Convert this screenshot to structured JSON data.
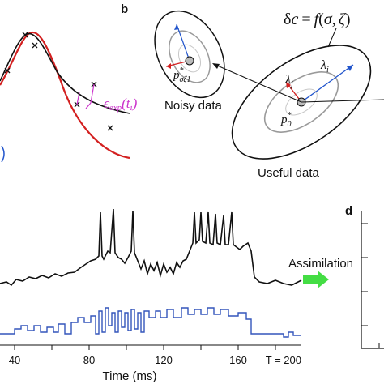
{
  "panels": {
    "b": "b",
    "d": "d"
  },
  "panel_a": {
    "epsilon_label": "ϵexp(ti)",
    "epsilon_prefix": "ϵ",
    "epsilon_sub": "exp",
    "epsilon_arg": "(t",
    "epsilon_arg_sub": "i",
    "epsilon_close": ")",
    "colors": {
      "black_curve": "#111111",
      "red_curve": "#d32020",
      "residual": "#cc33cc",
      "marker": "#111111"
    }
  },
  "panel_b": {
    "equation": "δc = f(σ, ζ)",
    "noisy_point_label": "p*σζ1",
    "useful_point_label": "p*0",
    "lambda_i": "λi",
    "lambda_j": "λj",
    "noisy_caption": "Noisy data",
    "useful_caption": "Useful data",
    "colors": {
      "blue_arrow": "#2255cc",
      "red_arrow": "#d32020",
      "ellipse": "#111111",
      "inner_ellipse": "#9a9a9a",
      "point": "#bbbbbb"
    }
  },
  "panel_c": {
    "xlabel": "Time (ms)",
    "ticks": [
      "40",
      "80",
      "120",
      "160",
      "T = 200"
    ],
    "assimilation_label": "Assimilation",
    "colors": {
      "voltage": "#111111",
      "current": "#3355bb",
      "arrow": "#44dd44"
    }
  },
  "chart_data": {
    "type": "line",
    "xlabel": "Time (ms)",
    "x_ticks": [
      40,
      80,
      120,
      160,
      200
    ],
    "x_tick_labels": [
      "40",
      "80",
      "120",
      "160",
      "T = 200"
    ],
    "series": [
      {
        "values": [
          [
            20,
            0.05
          ],
          [
            35,
            0.1
          ],
          [
            40,
            0.12
          ],
          [
            50,
            0.15
          ],
          [
            60,
            0.18
          ],
          [
            70,
            0.22
          ],
          [
            78,
            0.3
          ],
          [
            84,
            0.35
          ],
          [
            86,
            1.0
          ],
          [
            88,
            0.35
          ],
          [
            92,
            0.4
          ],
          [
            94,
            0.98
          ],
          [
            96,
            0.38
          ],
          [
            104,
            0.45
          ],
          [
            106,
            1.0
          ],
          [
            108,
            0.42
          ],
          [
            118,
            0.4
          ],
          [
            125,
            0.45
          ],
          [
            140,
            0.55
          ],
          [
            142,
            0.97
          ],
          [
            144,
            0.55
          ],
          [
            150,
            0.96
          ],
          [
            152,
            0.55
          ],
          [
            160,
            0.95
          ],
          [
            162,
            0.55
          ],
          [
            166,
            0.5
          ],
          [
            168,
            0.1
          ],
          [
            180,
            0.05
          ],
          [
            200,
            0.06
          ]
        ]
      },
      {
        "values": [
          [
            20,
            0.1
          ],
          [
            40,
            0.2
          ],
          [
            60,
            0.25
          ],
          [
            80,
            0.35
          ],
          [
            100,
            0.55
          ],
          [
            120,
            0.7
          ],
          [
            140,
            0.75
          ],
          [
            160,
            0.5
          ],
          [
            170,
            0.1
          ],
          [
            200,
            0.05
          ]
        ]
      }
    ]
  }
}
